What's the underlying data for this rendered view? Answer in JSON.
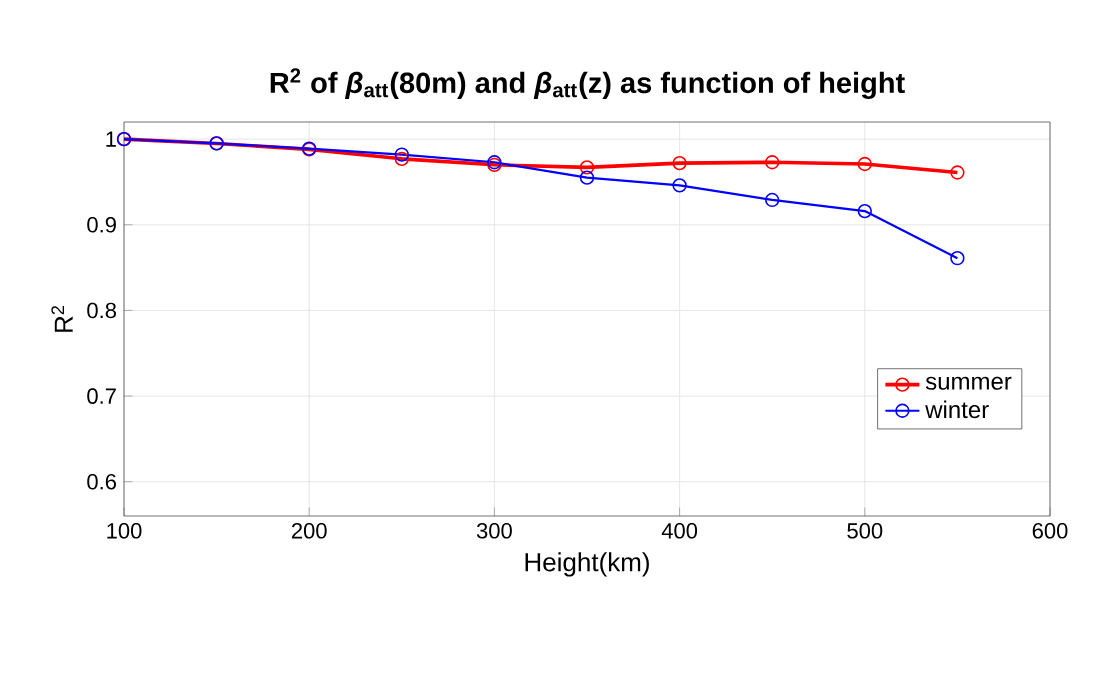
{
  "chart_data": {
    "type": "line",
    "title": "R$^{2}$ of *β*$_{att}$(80m) and *β*$_{att}$(z)  as function of height",
    "xlabel": "Height(km)",
    "ylabel": "R$^{2}$",
    "x": [
      100,
      150,
      200,
      250,
      300,
      350,
      400,
      450,
      500,
      550
    ],
    "series": [
      {
        "name": "summer",
        "color": "#ff0000",
        "values": [
          1.0,
          0.995,
          0.988,
          0.977,
          0.97,
          0.967,
          0.972,
          0.973,
          0.971,
          0.961
        ]
      },
      {
        "name": "winter",
        "color": "#0000ff",
        "values": [
          1.0,
          0.995,
          0.989,
          0.982,
          0.973,
          0.955,
          0.946,
          0.929,
          0.916,
          0.861
        ]
      }
    ],
    "xlim": [
      100,
      600
    ],
    "xticks": [
      100,
      200,
      300,
      400,
      500,
      600
    ],
    "ylim": [
      0.56,
      1.02
    ],
    "yticks": [
      0.6,
      0.7,
      0.8,
      0.9,
      1
    ],
    "grid": true,
    "legend": "right",
    "marker": "circle",
    "line_style": "solid"
  }
}
